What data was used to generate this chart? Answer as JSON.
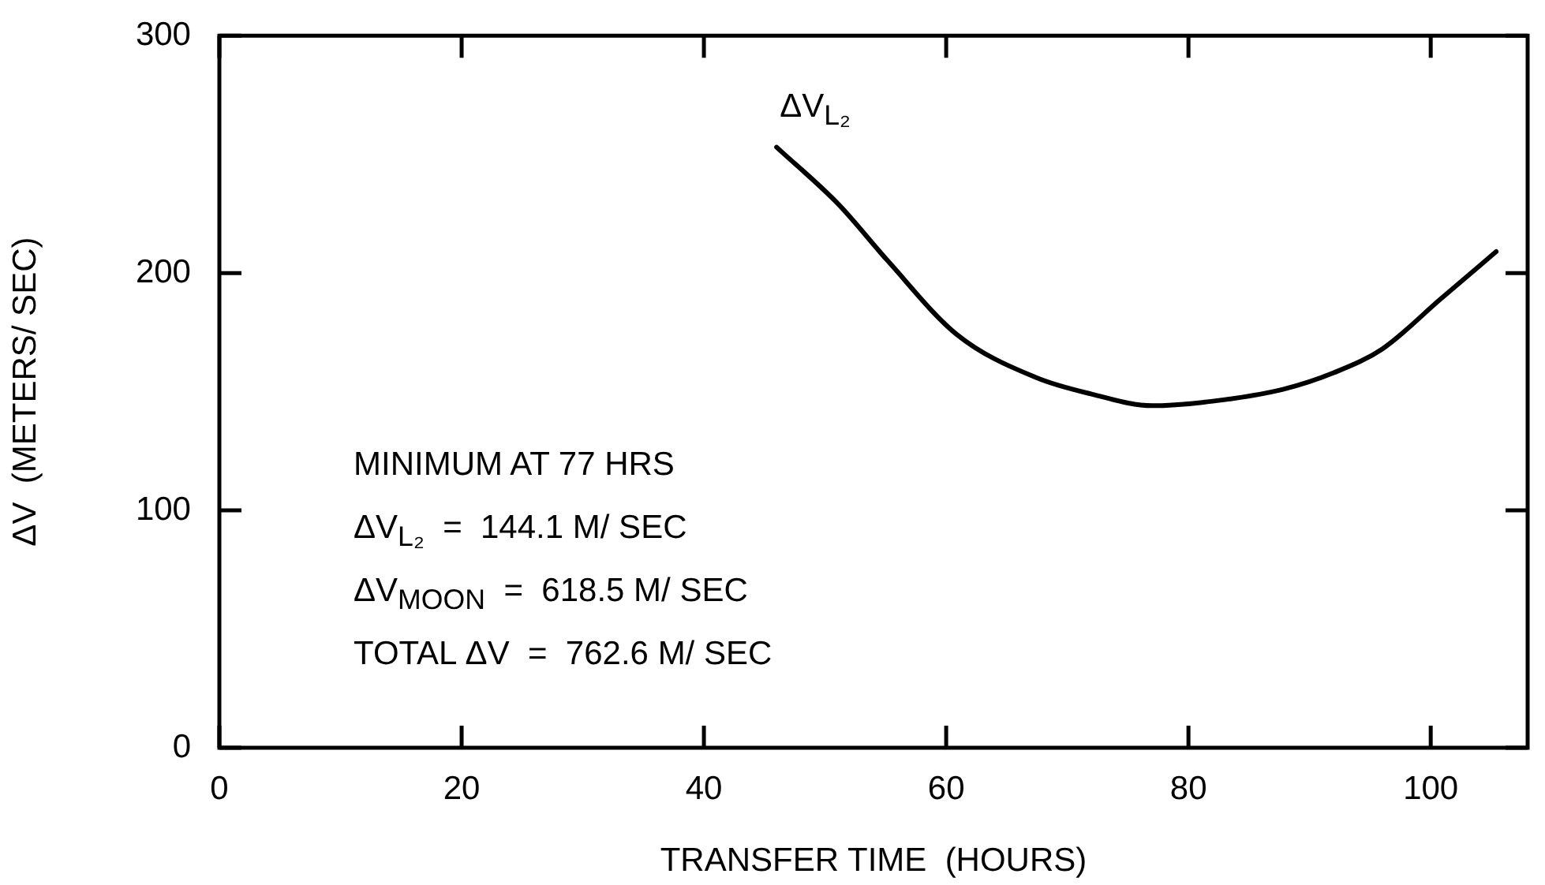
{
  "chart_data": {
    "type": "line",
    "xlabel": "TRANSFER TIME  (HOURS)",
    "ylabel": "ΔV  (METERS/ SEC)",
    "series": [
      {
        "color": "#000000",
        "x": [
          46,
          51.1,
          55.2,
          60.9,
          67.4,
          72,
          77,
          82,
          87.8,
          92,
          96,
          100.8,
          105.4
        ],
        "values": [
          253,
          229,
          205,
          174,
          156,
          149,
          144.1,
          146,
          151,
          158,
          168,
          189,
          209
        ]
      }
    ],
    "xlim": [
      0,
      108
    ],
    "xticks": [
      0,
      20,
      40,
      60,
      80,
      100
    ],
    "ylim": [
      0,
      300
    ],
    "yticks": [
      0,
      100,
      200,
      300
    ],
    "grid": false,
    "legend": false,
    "marker": "none",
    "line_style": "solid",
    "annotations": [
      {
        "text": "ΔV$_{L₂}$",
        "x": 46,
        "y": 253
      },
      "MINIMUM AT 77 HRS",
      "ΔV$_{L₂}$  =  144.1 M/ SEC",
      "ΔV$_{MOON}$  =  618.5 M/ SEC",
      "TOTAL ΔV  =  762.6 M/ SEC"
    ]
  }
}
